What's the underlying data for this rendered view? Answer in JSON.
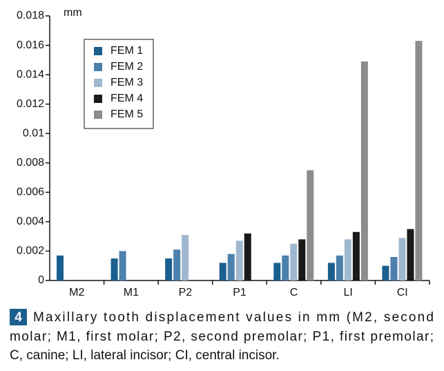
{
  "chart_data": {
    "type": "bar",
    "y_unit": "mm",
    "categories": [
      "M2",
      "M1",
      "P2",
      "P1",
      "C",
      "LI",
      "CI"
    ],
    "series": [
      {
        "name": "FEM 1",
        "color": "#1b5f8f",
        "values": [
          0.0017,
          0.0015,
          0.0015,
          0.0012,
          0.0012,
          0.0012,
          0.001
        ]
      },
      {
        "name": "FEM 2",
        "color": "#4c80ad",
        "values": [
          null,
          0.002,
          0.0021,
          0.0018,
          0.0017,
          0.0017,
          0.0016
        ]
      },
      {
        "name": "FEM 3",
        "color": "#a0b7d0",
        "values": [
          null,
          null,
          0.0031,
          0.0027,
          0.0025,
          0.0028,
          0.0029
        ]
      },
      {
        "name": "FEM 4",
        "color": "#1a1a1a",
        "values": [
          null,
          null,
          null,
          0.0032,
          0.0028,
          0.0033,
          0.0035
        ]
      },
      {
        "name": "FEM 5",
        "color": "#8c8c8c",
        "values": [
          null,
          null,
          null,
          null,
          0.0075,
          0.0149,
          0.0163
        ]
      }
    ],
    "ylim": [
      0,
      0.018
    ],
    "yticks": [
      0,
      0.002,
      0.004,
      0.006,
      0.008,
      0.01,
      0.012,
      0.014,
      0.016,
      0.018
    ],
    "grid": false,
    "legend": "upper left"
  },
  "caption": {
    "number": "4",
    "lines": [
      "Maxillary tooth displacement values in mm (M2, second",
      "molar; M1, first molar; P2, second premolar; P1, first premolar;",
      "C, canine; LI, lateral incisor; CI, central incisor."
    ]
  }
}
